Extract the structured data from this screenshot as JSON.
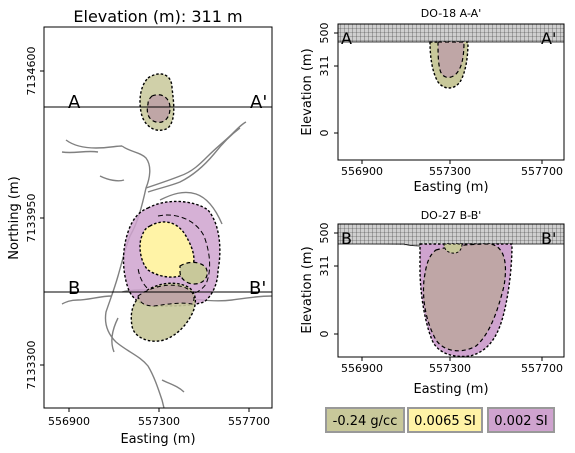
{
  "colors": {
    "density": "#c8c89a",
    "sus1": "#fff3a6",
    "sus2": "#cfa3cf",
    "overlap": "#bfa6a6",
    "legend_border": "#999999",
    "river": "#808080"
  },
  "chart_data": [
    {
      "type": "contour",
      "title": "Elevation (m):   311 m",
      "xlabel": "Easting (m)",
      "ylabel": "Northing (m)",
      "xticks": [
        "556900",
        "557300",
        "557700"
      ],
      "yticks": [
        "7134600",
        "7133950",
        "7133300"
      ],
      "sections": [
        {
          "start": "A",
          "end": "A'",
          "northing": 7134450
        },
        {
          "start": "B",
          "end": "B'",
          "northing": 7133610
        }
      ],
      "grid": false
    },
    {
      "type": "contour",
      "title": "DO-18 A-A'",
      "xlabel": "Easting (m)",
      "ylabel": "Elevation (m)",
      "xticks": [
        "556900",
        "557300",
        "557700"
      ],
      "yticks": [
        "500",
        "311",
        "0"
      ],
      "ylim": [
        -100,
        500
      ],
      "end_labels": [
        "A",
        "A'"
      ],
      "grid": false
    },
    {
      "type": "contour",
      "title": "DO-27 B-B'",
      "xlabel": "Easting (m)",
      "ylabel": "Elevation (m)",
      "xticks": [
        "556900",
        "557300",
        "557700"
      ],
      "yticks": [
        "500",
        "311",
        "0"
      ],
      "ylim": [
        -100,
        500
      ],
      "end_labels": [
        "B",
        "B'"
      ],
      "grid": false
    }
  ],
  "legend": [
    {
      "label": "-0.24 g/cc",
      "color": "#c8c89a"
    },
    {
      "label": "0.0065 SI",
      "color": "#fff3a6"
    },
    {
      "label": "0.002 SI",
      "color": "#cfa3cf"
    }
  ]
}
